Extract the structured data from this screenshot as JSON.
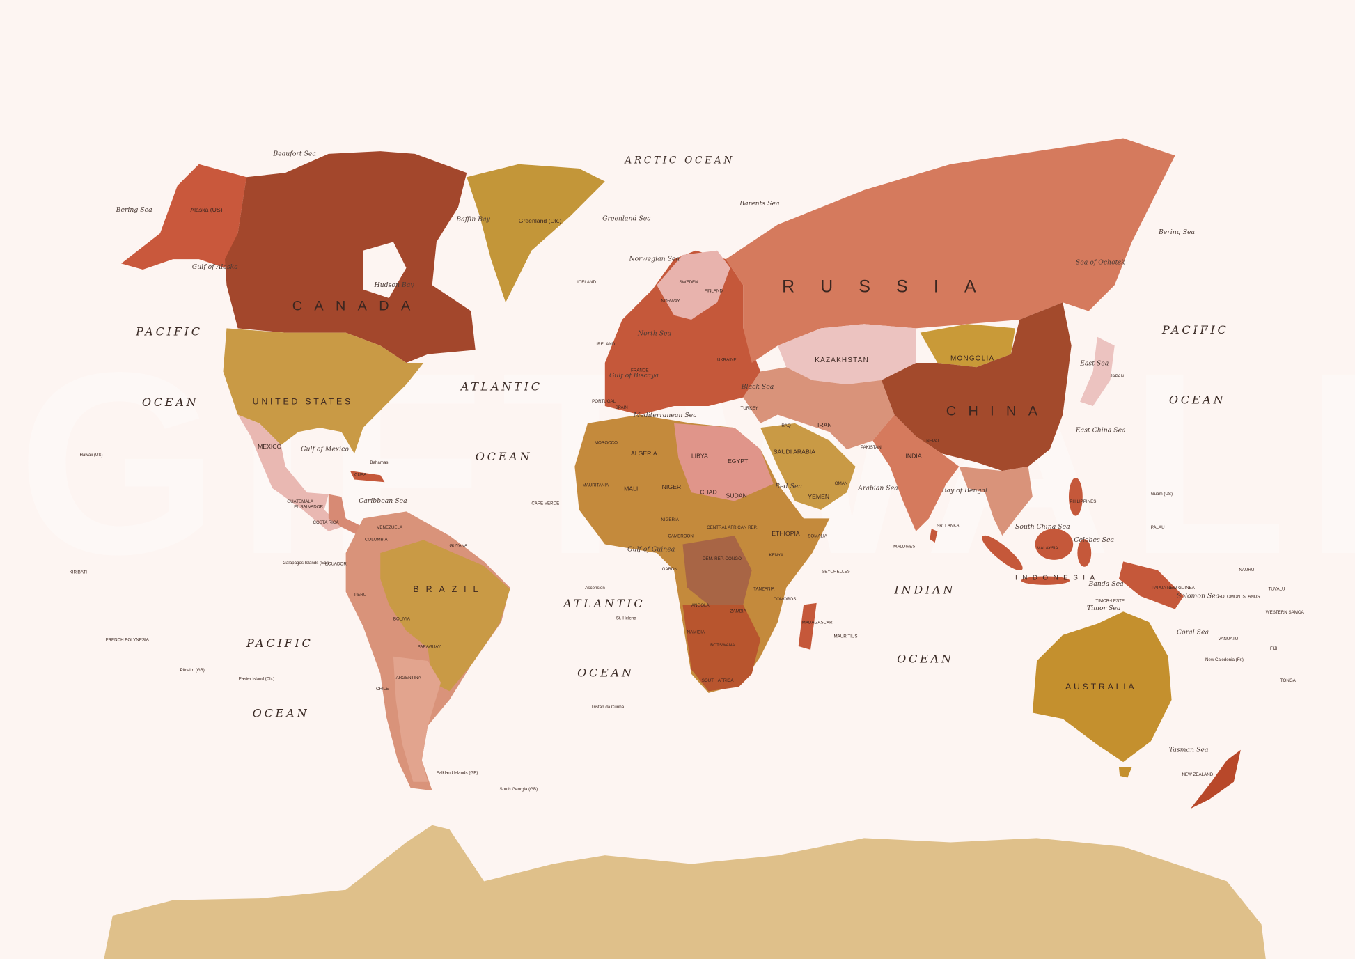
{
  "map": {
    "colors": {
      "background": "#fdf5f2",
      "canada": "#a3472c",
      "usa": "#c99a45",
      "mexico": "#e9b8b2",
      "greenland": "#c39639",
      "russia": "#d57a5d",
      "china": "#a34a2c",
      "kazakhstan": "#ecc3c0",
      "mongolia": "#c99a38",
      "europe": "#c5583a",
      "africa": "#c48a3c",
      "south_america": "#d9937a",
      "brazil": "#c99a45",
      "australia": "#c4902e",
      "antarctica": "#dfc08a",
      "new_zealand": "#b8482a"
    },
    "watermark": "GIFTWALLS",
    "oceans": [
      "PACIFIC",
      "OCEAN",
      "ATLANTIC",
      "OCEAN",
      "PACIFIC",
      "OCEAN",
      "ATLANTIC",
      "OCEAN",
      "PACIFIC",
      "OCEAN",
      "INDIAN",
      "OCEAN",
      "ARCTIC OCEAN"
    ],
    "seas": [
      "Beaufort Sea",
      "Bering Sea",
      "Gulf of Alaska",
      "Baffin Bay",
      "Hudson Bay",
      "Greenland Sea",
      "Norwegian Sea",
      "Barents Sea",
      "Bering Sea",
      "Sea of Ochotsk",
      "Gulf of Mexico",
      "Caribbean Sea",
      "Gulf of Biscaya",
      "Mediterranean Sea",
      "Black Sea",
      "Arabian Sea",
      "Bay of Bengal",
      "East China Sea",
      "South China Sea",
      "Celebes Sea",
      "Banda Sea",
      "Coral Sea",
      "Tasman Sea",
      "Gulf of Guinea",
      "North Sea",
      "East Sea",
      "Solomon Sea",
      "Red Sea",
      "Timor Sea"
    ],
    "countries_large": [
      "CANADA",
      "RUSSIA",
      "CHINA",
      "BRAZIL",
      "INDONESIA"
    ],
    "countries_mid": [
      "UNITED STATES",
      "KAZAKHSTAN",
      "MONGOLIA",
      "AUSTRALIA"
    ],
    "countries": [
      "Alaska (US)",
      "Greenland (Dk.)",
      "MEXICO",
      "ICELAND",
      "SWEDEN",
      "FINLAND",
      "NORWAY",
      "UKRAINE",
      "IRELAND",
      "FRANCE",
      "SPAIN",
      "PORTUGAL",
      "TURKEY",
      "IRAN",
      "IRAQ",
      "SAUDI ARABIA",
      "YEMEN",
      "OMAN",
      "EGYPT",
      "LIBYA",
      "ALGERIA",
      "MOROCCO",
      "MAURITANIA",
      "MALI",
      "NIGER",
      "CHAD",
      "SUDAN",
      "ETHIOPIA",
      "SOMALIA",
      "KENYA",
      "TANZANIA",
      "NIGERIA",
      "CAMEROON",
      "GABON",
      "ANGOLA",
      "ZAMBIA",
      "NAMIBIA",
      "BOTSWANA",
      "SOUTH AFRICA",
      "MADAGASCAR",
      "INDIA",
      "PAKISTAN",
      "NEPAL",
      "JAPAN",
      "PHILIPPINES",
      "MALAYSIA",
      "PAPUA NEW GUINEA",
      "NEW ZEALAND",
      "COLOMBIA",
      "VENEZUELA",
      "GUYANA",
      "ECUADOR",
      "PERU",
      "BOLIVIA",
      "PARAGUAY",
      "CHILE",
      "ARGENTINA",
      "CUBA",
      "Bahamas",
      "KIRIBATI",
      "FRENCH POLYNESIA",
      "Hawaii (US)",
      "DEM. REP. CONGO",
      "CENTRAL AFRICAN REP.",
      "TIMOR-LESTE",
      "SOLOMON ISLANDS",
      "VANUATU",
      "FIJI",
      "TONGA",
      "TUVALU",
      "NAURU",
      "WESTERN SAMOA",
      "SEYCHELLES",
      "MAURITIUS",
      "MALDIVES",
      "SRI LANKA",
      "CAPE VERDE",
      "Falkland Islands (GB)",
      "South Georgia (GB)",
      "Galapagos Islands (Ec.)",
      "St. Helena",
      "Ascension",
      "Tristan da Cunha",
      "Pitcairn (GB)",
      "Easter Island (Ch.)",
      "New Caledonia (Fr.)",
      "PALAU",
      "Guam (US)",
      "COMOROS",
      "EL SALVADOR",
      "COSTA RICA",
      "GUATEMALA"
    ]
  }
}
